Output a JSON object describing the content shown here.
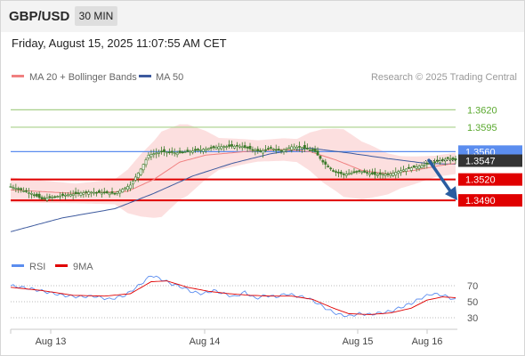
{
  "header": {
    "symbol": "GBP/USD",
    "timeframe": "30 MIN"
  },
  "datetime": "Friday, August 15, 2025 11:07:55 AM CET",
  "legend": {
    "bb_label": "MA 20 + Bollinger Bands",
    "ma50_label": "MA 50",
    "rsi_label": "RSI",
    "rsi_ma_label": "9MA",
    "credit": "Research © 2025 Trading Central"
  },
  "colors": {
    "bb_fill": "#f9c4c4",
    "ma20": "#f08080",
    "ma50": "#3d5a9e",
    "candle": "#3c7a2a",
    "resistance": "#a8d08a",
    "current_line": "#5b8def",
    "support": "#e00000",
    "arrow": "#2a5da0",
    "rsi": "#5b8def",
    "rsi_ma": "#e00000"
  },
  "chart_data": [
    {
      "type": "candlestick",
      "ylim": [
        1.3425,
        1.3655
      ],
      "levels": [
        {
          "value": 1.362,
          "label": "1.3620",
          "kind": "resistance"
        },
        {
          "value": 1.3595,
          "label": "1.3595",
          "kind": "resistance"
        },
        {
          "value": 1.356,
          "label": "1.3560",
          "kind": "pivot"
        },
        {
          "value": 1.352,
          "label": "1.3520",
          "kind": "support"
        },
        {
          "value": 1.349,
          "label": "1.3490",
          "kind": "support"
        }
      ],
      "current_price": {
        "value": 1.3547,
        "label": "1.3547"
      },
      "x_ticks": [
        "Aug 13",
        "Aug 14",
        "Aug 15",
        "Aug 16"
      ],
      "forecast_arrow": {
        "from": 1.3545,
        "to": 1.349,
        "direction": "down"
      },
      "price_path": [
        [
          0,
          1.351
        ],
        [
          8,
          1.35
        ],
        [
          12,
          1.3492
        ],
        [
          20,
          1.3497
        ],
        [
          30,
          1.3502
        ],
        [
          40,
          1.35
        ],
        [
          46,
          1.3512
        ],
        [
          50,
          1.3535
        ],
        [
          53,
          1.3555
        ],
        [
          58,
          1.356
        ],
        [
          64,
          1.3558
        ],
        [
          72,
          1.3562
        ],
        [
          80,
          1.3567
        ],
        [
          88,
          1.3568
        ],
        [
          96,
          1.356
        ],
        [
          100,
          1.3565
        ],
        [
          104,
          1.3561
        ],
        [
          108,
          1.3567
        ],
        [
          112,
          1.3566
        ],
        [
          117,
          1.356
        ],
        [
          120,
          1.3545
        ],
        [
          124,
          1.3532
        ],
        [
          128,
          1.3527
        ],
        [
          134,
          1.3532
        ],
        [
          140,
          1.3527
        ],
        [
          146,
          1.3528
        ],
        [
          152,
          1.3535
        ],
        [
          158,
          1.354
        ],
        [
          163,
          1.3545
        ],
        [
          168,
          1.355
        ],
        [
          171,
          1.3548
        ]
      ],
      "ma20_path": [
        [
          0,
          1.3505
        ],
        [
          25,
          1.35
        ],
        [
          45,
          1.3503
        ],
        [
          55,
          1.352
        ],
        [
          65,
          1.3545
        ],
        [
          75,
          1.3555
        ],
        [
          90,
          1.356
        ],
        [
          105,
          1.3563
        ],
        [
          115,
          1.356
        ],
        [
          125,
          1.3548
        ],
        [
          135,
          1.3533
        ],
        [
          145,
          1.3528
        ],
        [
          155,
          1.3533
        ],
        [
          165,
          1.354
        ],
        [
          171,
          1.3543
        ]
      ],
      "ma50_path": [
        [
          0,
          1.3445
        ],
        [
          20,
          1.3465
        ],
        [
          40,
          1.3478
        ],
        [
          55,
          1.35
        ],
        [
          70,
          1.3525
        ],
        [
          85,
          1.3543
        ],
        [
          100,
          1.3557
        ],
        [
          115,
          1.3565
        ],
        [
          130,
          1.3558
        ],
        [
          145,
          1.355
        ],
        [
          160,
          1.3543
        ],
        [
          171,
          1.3542
        ]
      ],
      "bb_width_path": [
        [
          0,
          14
        ],
        [
          25,
          11
        ],
        [
          40,
          14
        ],
        [
          50,
          35
        ],
        [
          58,
          48
        ],
        [
          68,
          40
        ],
        [
          80,
          18
        ],
        [
          95,
          12
        ],
        [
          110,
          13
        ],
        [
          120,
          30
        ],
        [
          128,
          38
        ],
        [
          138,
          30
        ],
        [
          150,
          18
        ],
        [
          163,
          12
        ],
        [
          171,
          12
        ]
      ]
    },
    {
      "type": "line",
      "ylim": [
        20,
        80
      ],
      "y_ticks": [
        70,
        50,
        30
      ],
      "rsi_path": [
        [
          0,
          70
        ],
        [
          8,
          66
        ],
        [
          14,
          62
        ],
        [
          20,
          58
        ],
        [
          26,
          56
        ],
        [
          32,
          57
        ],
        [
          38,
          53
        ],
        [
          44,
          58
        ],
        [
          50,
          72
        ],
        [
          54,
          83
        ],
        [
          58,
          78
        ],
        [
          62,
          72
        ],
        [
          66,
          68
        ],
        [
          70,
          62
        ],
        [
          74,
          60
        ],
        [
          78,
          64
        ],
        [
          82,
          60
        ],
        [
          86,
          56
        ],
        [
          90,
          62
        ],
        [
          94,
          54
        ],
        [
          98,
          58
        ],
        [
          102,
          56
        ],
        [
          106,
          60
        ],
        [
          110,
          57
        ],
        [
          114,
          55
        ],
        [
          118,
          48
        ],
        [
          122,
          40
        ],
        [
          126,
          34
        ],
        [
          130,
          32
        ],
        [
          134,
          35
        ],
        [
          138,
          34
        ],
        [
          142,
          36
        ],
        [
          146,
          38
        ],
        [
          150,
          43
        ],
        [
          154,
          48
        ],
        [
          158,
          55
        ],
        [
          162,
          60
        ],
        [
          166,
          58
        ],
        [
          168,
          56
        ],
        [
          171,
          52
        ]
      ],
      "rsi_ma_path": [
        [
          0,
          68
        ],
        [
          12,
          64
        ],
        [
          24,
          58
        ],
        [
          36,
          57
        ],
        [
          46,
          60
        ],
        [
          54,
          75
        ],
        [
          60,
          76
        ],
        [
          68,
          68
        ],
        [
          76,
          63
        ],
        [
          84,
          60
        ],
        [
          92,
          58
        ],
        [
          100,
          57
        ],
        [
          108,
          57
        ],
        [
          116,
          53
        ],
        [
          124,
          42
        ],
        [
          130,
          35
        ],
        [
          138,
          34
        ],
        [
          146,
          36
        ],
        [
          154,
          42
        ],
        [
          160,
          52
        ],
        [
          166,
          56
        ],
        [
          171,
          55
        ]
      ]
    }
  ]
}
